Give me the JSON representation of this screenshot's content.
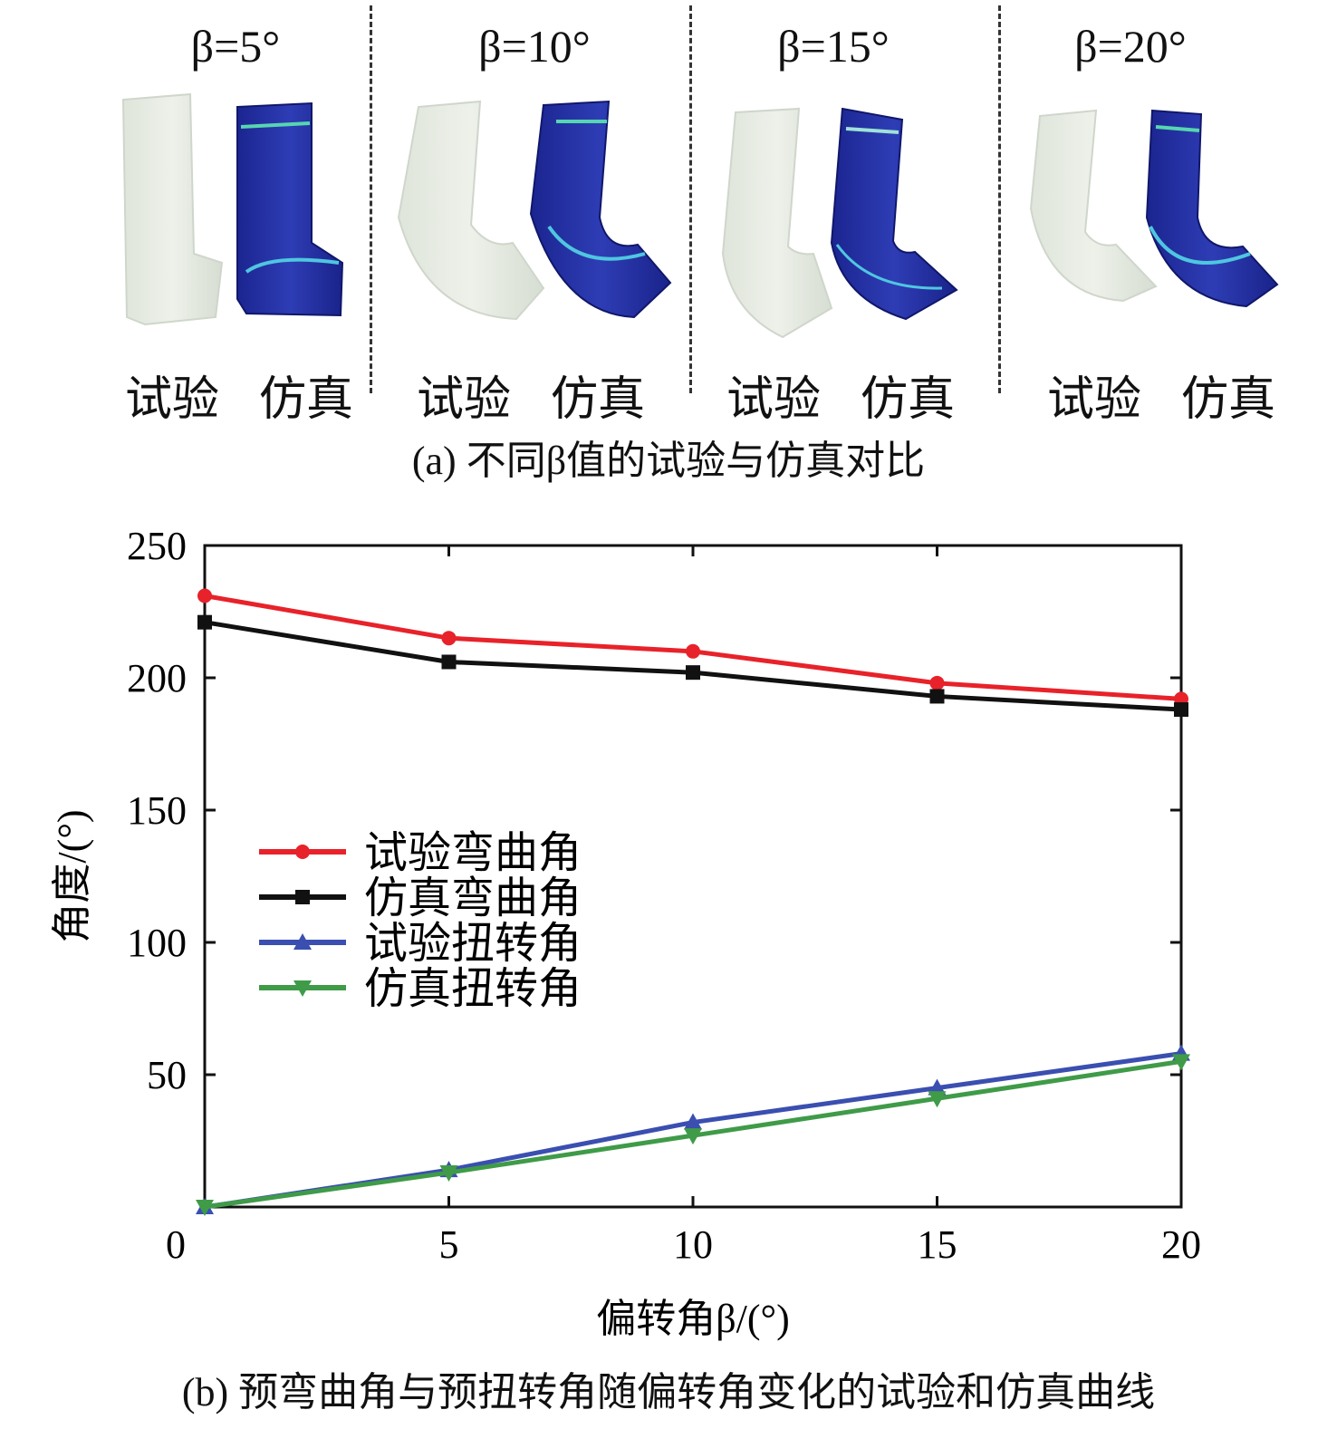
{
  "panel_a": {
    "groups": [
      {
        "beta_label": "β=5°",
        "exp_label": "试验",
        "sim_label": "仿真"
      },
      {
        "beta_label": "β=10°",
        "exp_label": "试验",
        "sim_label": "仿真"
      },
      {
        "beta_label": "β=15°",
        "exp_label": "试验",
        "sim_label": "仿真"
      },
      {
        "beta_label": "β=20°",
        "exp_label": "试验",
        "sim_label": "仿真"
      }
    ],
    "caption": "(a) 不同β值的试验与仿真对比"
  },
  "panel_b_caption": "(b) 预弯曲角与预扭转角随偏转角变化的试验和仿真曲线",
  "colors": {
    "exp_bend": "#e8222a",
    "sim_bend": "#111111",
    "exp_twist": "#3a4fb0",
    "sim_twist": "#3f9b48",
    "silicone": "#e3e8df",
    "fem_blue": "#23309e"
  },
  "chart_data": {
    "type": "line",
    "xlabel": "偏转角β/(°)",
    "ylabel": "角度/(°)",
    "xlim": [
      0,
      20
    ],
    "ylim": [
      0,
      250
    ],
    "x_ticks": [
      "0",
      "5",
      "10",
      "15",
      "20"
    ],
    "y_ticks": [
      "50",
      "100",
      "150",
      "200",
      "250"
    ],
    "legend_position": "center-left",
    "x": [
      0,
      5,
      10,
      15,
      20
    ],
    "series": [
      {
        "name": "试验弯曲角",
        "marker": "circle",
        "values": [
          231,
          215,
          210,
          198,
          192
        ]
      },
      {
        "name": "仿真弯曲角",
        "marker": "square",
        "values": [
          221,
          206,
          202,
          193,
          188
        ]
      },
      {
        "name": "试验扭转角",
        "marker": "triangle-up",
        "values": [
          0,
          14,
          32,
          45,
          58
        ]
      },
      {
        "name": "仿真扭转角",
        "marker": "triangle-down",
        "values": [
          0,
          13,
          27,
          41,
          55
        ]
      }
    ]
  }
}
